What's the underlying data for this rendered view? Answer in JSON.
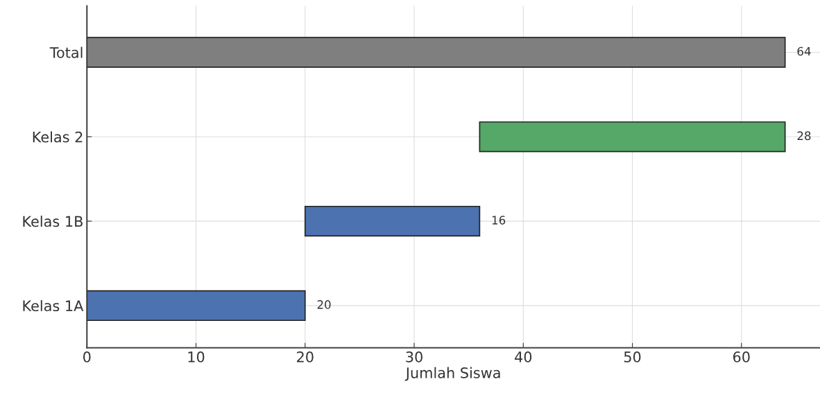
{
  "chart_data": {
    "type": "bar",
    "orientation": "horizontal",
    "xlabel": "Jumlah Siswa",
    "categories": [
      "Total",
      "Kelas 2",
      "Kelas 1B",
      "Kelas 1A"
    ],
    "values": [
      64,
      28,
      16,
      20
    ],
    "base": [
      0,
      36,
      20,
      0
    ],
    "colors": [
      "#7f7f7f",
      "#55a868",
      "#4c72b0",
      "#4c72b0"
    ],
    "xlim": [
      0,
      67.2
    ],
    "xticks": [
      0,
      10,
      20,
      30,
      40,
      50,
      60
    ],
    "data_labels": true,
    "grid": true
  }
}
